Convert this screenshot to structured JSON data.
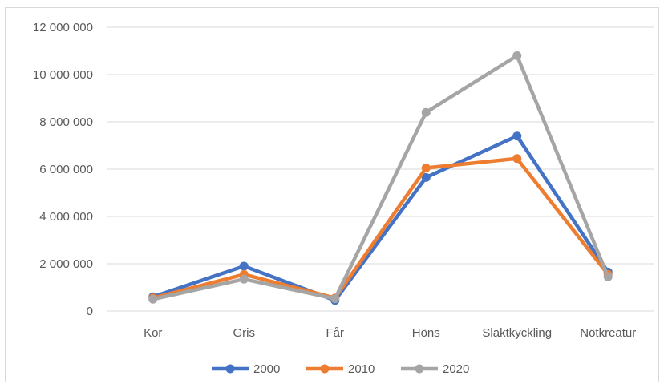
{
  "chart_data": {
    "type": "line",
    "categories": [
      "Kor",
      "Gris",
      "Får",
      "Höns",
      "Slaktkyckling",
      "Nötkreatur"
    ],
    "series": [
      {
        "name": "2000",
        "color": "#4472c4",
        "values": [
          600000,
          1900000,
          450000,
          5650000,
          7400000,
          1650000
        ]
      },
      {
        "name": "2010",
        "color": "#ed7d31",
        "values": [
          550000,
          1550000,
          550000,
          6050000,
          6450000,
          1550000
        ]
      },
      {
        "name": "2020",
        "color": "#a5a5a5",
        "values": [
          500000,
          1350000,
          520000,
          8400000,
          10800000,
          1450000
        ]
      }
    ],
    "ylim": [
      0,
      12000000
    ],
    "yticks": [
      0,
      2000000,
      4000000,
      6000000,
      8000000,
      10000000,
      12000000
    ],
    "ytick_labels": [
      "0",
      "2 000 000",
      "4 000 000",
      "6 000 000",
      "8 000 000",
      "10 000 000",
      "12 000 000"
    ],
    "grid": true,
    "legend_position": "bottom",
    "title": "",
    "xlabel": "",
    "ylabel": ""
  }
}
